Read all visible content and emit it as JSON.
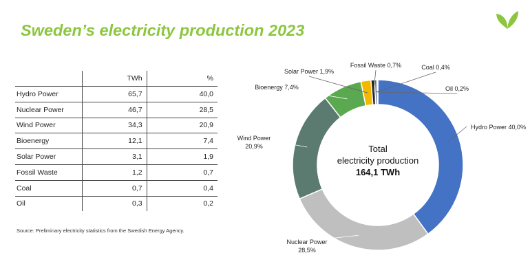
{
  "title": "Sweden’s electricity production 2023",
  "brand_color": "#8cc63f",
  "logo_icon": "leaf-logo-icon",
  "table": {
    "headers": [
      "",
      "TWh",
      "%"
    ],
    "rows": [
      {
        "name": "Hydro Power",
        "twh": "65,7",
        "pct": "40,0"
      },
      {
        "name": "Nuclear Power",
        "twh": "46,7",
        "pct": "28,5"
      },
      {
        "name": "Wind Power",
        "twh": "34,3",
        "pct": "20,9"
      },
      {
        "name": "Bioenergy",
        "twh": "12,1",
        "pct": "7,4"
      },
      {
        "name": "Solar Power",
        "twh": "3,1",
        "pct": "1,9"
      },
      {
        "name": "Fossil Waste",
        "twh": "1,2",
        "pct": "0,7"
      },
      {
        "name": "Coal",
        "twh": "0,7",
        "pct": "0,4"
      },
      {
        "name": "Oil",
        "twh": "0,3",
        "pct": "0,2"
      }
    ]
  },
  "source": "Source: Preliminary electricity statistics from the Swedish Energy Agency.",
  "chart_data": {
    "type": "pie",
    "donut": true,
    "center_text": [
      "Total",
      "electricity production",
      "164,1 TWh"
    ],
    "slices": [
      {
        "label": "Hydro Power",
        "pct_label": "40,0%",
        "value": 40.0,
        "color": "#4472c4"
      },
      {
        "label": "Nuclear Power",
        "pct_label": "28,5%",
        "value": 28.5,
        "color": "#bfbfbf"
      },
      {
        "label": "Wind Power",
        "pct_label": "20,9%",
        "value": 20.9,
        "color": "#5b7b70"
      },
      {
        "label": "Bioenergy",
        "pct_label": "7,4%",
        "value": 7.4,
        "color": "#5aa850"
      },
      {
        "label": "Solar Power",
        "pct_label": "1,9%",
        "value": 1.9,
        "color": "#f5b800"
      },
      {
        "label": "Fossil Waste",
        "pct_label": "0,7%",
        "value": 0.7,
        "color": "#222222"
      },
      {
        "label": "Coal",
        "pct_label": "0,4%",
        "value": 0.4,
        "color": "#2a4d7a"
      },
      {
        "label": "Oil",
        "pct_label": "0,2%",
        "value": 0.2,
        "color": "#a6a6a6"
      }
    ]
  }
}
